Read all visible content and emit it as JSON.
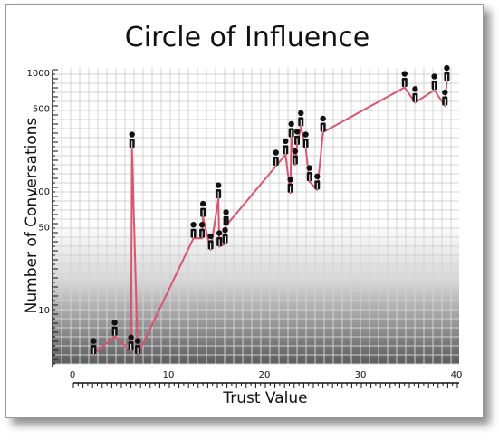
{
  "chart_data": {
    "type": "line",
    "title": "Circle of Influence",
    "xlabel": "Trust Value",
    "ylabel": "Number of Conversations",
    "x_ticks": [
      0,
      10,
      20,
      30,
      40
    ],
    "y_ticks": [
      10,
      50,
      100,
      500,
      1000
    ],
    "xlim": [
      0,
      40
    ],
    "ylim": [
      3.5,
      1050
    ],
    "y_scale": "log",
    "grid": true,
    "markers": "person-icon",
    "colors": {
      "line": "#d9556f",
      "marker": "#111111",
      "grid": "#d3d3d3"
    },
    "series": [
      {
        "x": [
          2.2,
          4.4,
          6.1,
          6.2,
          6.8,
          12.6,
          13.5,
          13.6,
          14.4,
          15.2,
          15.3,
          15.9,
          16.0,
          21.2,
          22.2,
          22.7,
          22.8,
          23.2,
          23.4,
          23.8,
          24.3,
          24.7,
          25.5,
          26.1,
          34.6,
          35.7,
          37.7,
          38.8,
          39.0
        ],
        "y": [
          4.2,
          6.0,
          4.5,
          230,
          4.2,
          40,
          40,
          60,
          32,
          86,
          34,
          36,
          51,
          162,
          202,
          96,
          282,
          166,
          243,
          348,
          230,
          120,
          102,
          313,
          745,
          555,
          708,
          520,
          834
        ]
      }
    ]
  }
}
